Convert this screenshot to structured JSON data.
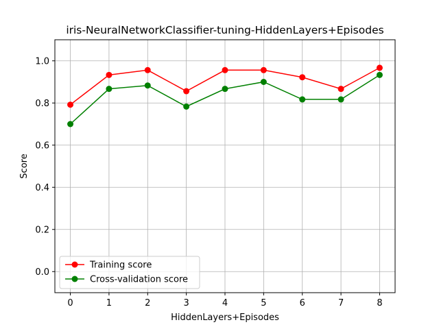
{
  "chart_data": {
    "type": "line",
    "title": "iris-NeuralNetworkClassifier-tuning-HiddenLayers+Episodes",
    "xlabel": "HiddenLayers+Episodes",
    "ylabel": "Score",
    "x": [
      0,
      1,
      2,
      3,
      4,
      5,
      6,
      7,
      8
    ],
    "xlim": [
      -0.4,
      8.4
    ],
    "ylim": [
      -0.1,
      1.1
    ],
    "xticks": [
      "0",
      "1",
      "2",
      "3",
      "4",
      "5",
      "6",
      "7",
      "8"
    ],
    "yticks": [
      "0.0",
      "0.2",
      "0.4",
      "0.6",
      "0.8",
      "1.0"
    ],
    "grid": true,
    "legend_position": "lower-left",
    "series": [
      {
        "name": "Training score",
        "color": "#ff0000",
        "values": [
          0.792,
          0.933,
          0.956,
          0.856,
          0.956,
          0.956,
          0.922,
          0.867,
          0.967
        ]
      },
      {
        "name": "Cross-validation score",
        "color": "#008000",
        "values": [
          0.7,
          0.867,
          0.883,
          0.783,
          0.867,
          0.9,
          0.817,
          0.817,
          0.933
        ]
      }
    ]
  }
}
